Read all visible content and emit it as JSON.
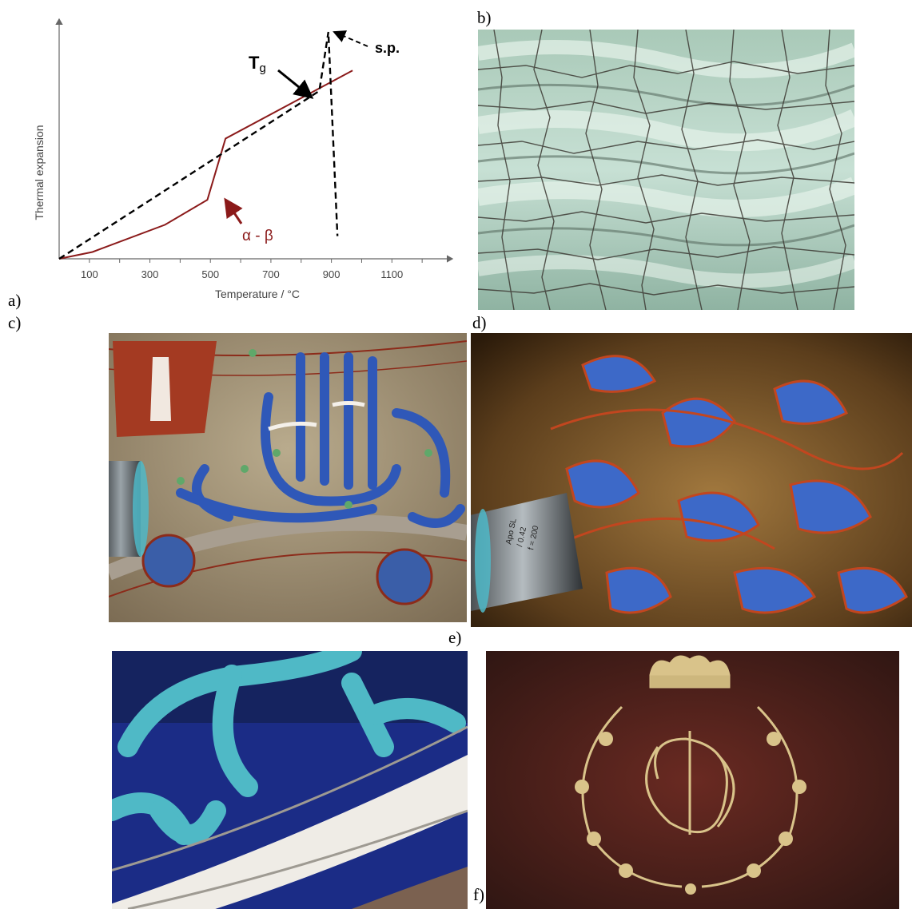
{
  "panels": {
    "a": "a)",
    "b": "b)",
    "c": "c)",
    "d": "d)",
    "e": "e)",
    "f": "f)"
  },
  "chart_data": {
    "type": "line",
    "xlabel": "Temperature / °C",
    "ylabel": "Thermal expansion",
    "xticks": [
      100,
      300,
      500,
      700,
      900,
      1100
    ],
    "xlim": [
      0,
      1300
    ],
    "ylim": [
      0,
      1
    ],
    "grid": false,
    "series": [
      {
        "style": "solid",
        "color": "#8b1a1a",
        "x": [
          0,
          110,
          350,
          490,
          550,
          970
        ],
        "y": [
          0,
          0.03,
          0.15,
          0.26,
          0.53,
          0.83
        ]
      },
      {
        "style": "dashed",
        "color": "#000000",
        "x": [
          0,
          860,
          890,
          920
        ],
        "y": [
          0,
          0.74,
          1.0,
          0.1
        ]
      }
    ],
    "annotations": {
      "tg": "T",
      "tg_sub": "g",
      "sp": "s.p.",
      "alpha_beta": "α - β"
    }
  },
  "photos": {
    "b": "crackle-glaze-celadon",
    "c": "enamelled-glass-inscription",
    "d": "enamelled-glass-arabesque",
    "e": "blue-turquoise-enamel",
    "f": "gilded-monogram-crown"
  },
  "microscope": {
    "line1": "Apo SL",
    "line2": "/ 0.42",
    "line3": "f = 200"
  }
}
